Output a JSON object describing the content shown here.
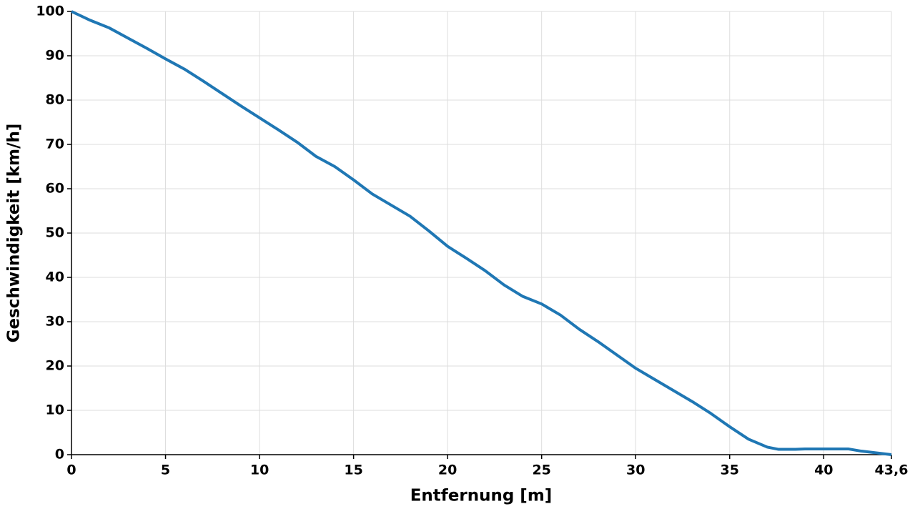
{
  "chart_data": {
    "type": "line",
    "xlabel": "Entfernung [m]",
    "ylabel": "Geschwindigkeit [km/h]",
    "x": [
      0,
      1,
      2,
      3,
      4,
      5,
      6,
      7,
      8,
      9,
      10,
      11,
      12,
      13,
      14,
      15,
      16,
      17,
      18,
      19,
      20,
      21,
      22,
      23,
      24,
      25,
      26,
      27,
      28,
      29,
      30,
      31,
      32,
      33,
      34,
      35,
      36,
      37,
      37.6,
      38.5,
      39,
      41.3,
      42,
      43.6
    ],
    "series": [
      {
        "color": "#1f77b4",
        "values": [
          100,
          98,
          96.3,
          94,
          91.7,
          89.3,
          87,
          84.3,
          81.5,
          78.7,
          76,
          73.3,
          70.5,
          67.3,
          65,
          62,
          58.8,
          56.3,
          53.8,
          50.5,
          47,
          44.3,
          41.5,
          38.3,
          35.7,
          34,
          31.5,
          28.3,
          25.5,
          22.5,
          19.5,
          17,
          14.5,
          12,
          9.3,
          6.3,
          3.5,
          1.7,
          1.2,
          1.2,
          1.3,
          1.3,
          0.8,
          0
        ]
      }
    ],
    "xlim": [
      0,
      43.6
    ],
    "ylim": [
      0,
      100
    ],
    "xticks": [
      0,
      5,
      10,
      15,
      20,
      25,
      30,
      35,
      40,
      {
        "value": 43.6,
        "label": "43,6"
      }
    ],
    "yticks": [
      0,
      10,
      20,
      30,
      40,
      50,
      60,
      70,
      80,
      90,
      100
    ],
    "grid": true
  }
}
